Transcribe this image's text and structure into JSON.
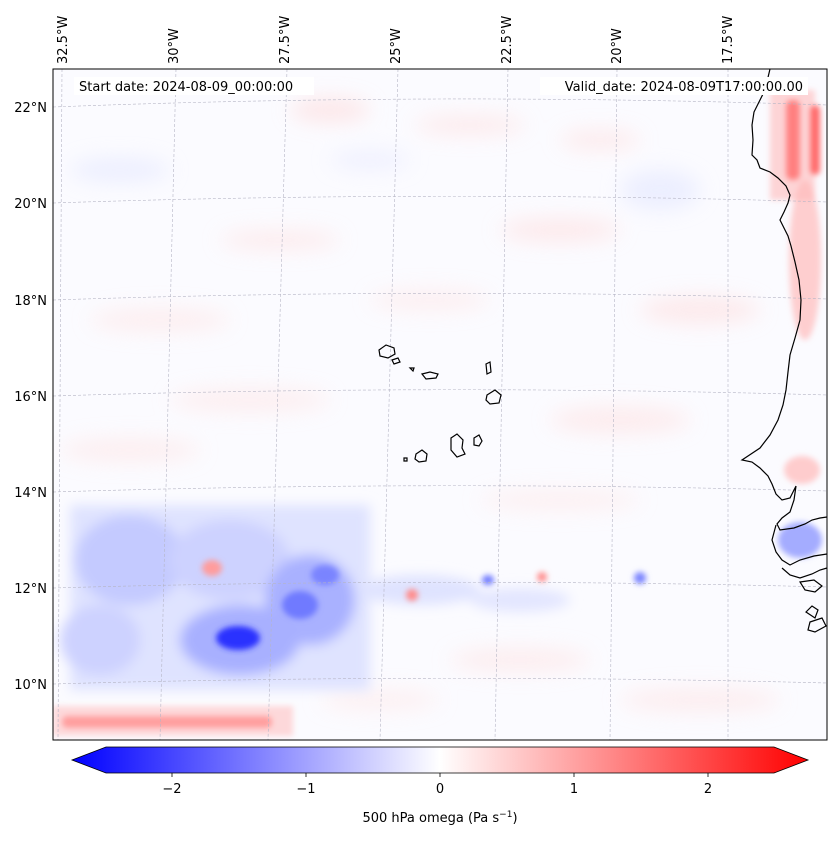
{
  "map": {
    "start_date_text": "Start date: 2024-08-09_00:00:00",
    "valid_date_text": "Valid_date: 2024-08-09T17:00:00.00",
    "lon_labels": [
      "32.5°W",
      "30°W",
      "27.5°W",
      "25°W",
      "22.5°W",
      "20°W",
      "17.5°W"
    ],
    "lat_labels": [
      "22°N",
      "20°N",
      "18°N",
      "16°N",
      "14°N",
      "12°N",
      "10°N"
    ],
    "variable": "500 hPa omega",
    "colors": {
      "negative": "#0000ff",
      "neutral": "#ffffff",
      "positive": "#ff0000",
      "coastline": "#000000",
      "gridline": "#b0b0b0"
    }
  },
  "colorbar": {
    "label": "500 hPa omega (Pa s",
    "label_sup": "−1",
    "label_close": ")",
    "ticks": [
      "−2",
      "−1",
      "0",
      "1",
      "2"
    ],
    "min": -2.75,
    "max": 2.75,
    "extend": "both"
  }
}
